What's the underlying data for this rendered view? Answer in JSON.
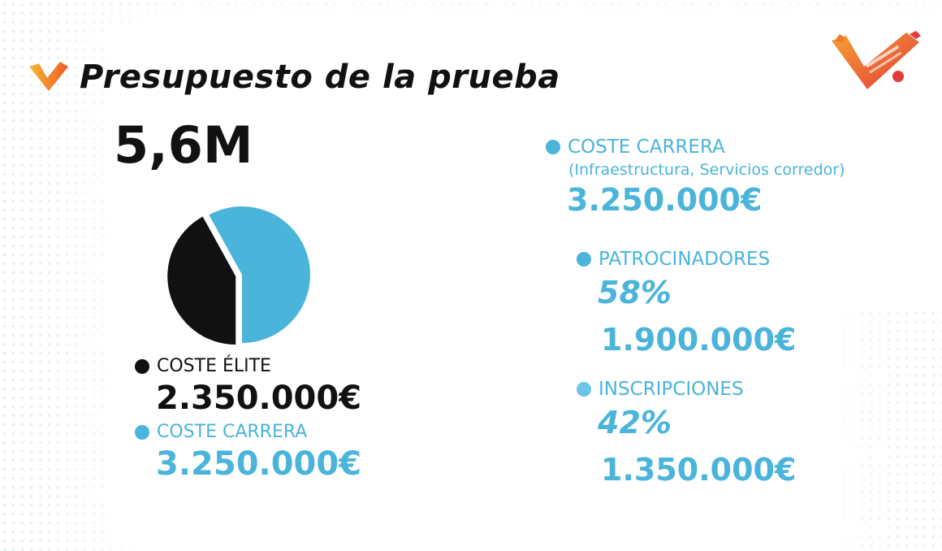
{
  "title": "Presupuesto de la prueba",
  "total": "5,6M",
  "colors": {
    "black": "#111111",
    "blue": "#4ab4db",
    "light_blue": "#6cc4e6",
    "orange": "#f07a2e",
    "red": "#e33a3a"
  },
  "left_legend": {
    "elite_label": "COSTE ÉLITE",
    "elite_amount": "2.350.000€",
    "carrera_label": "COSTE CARRERA",
    "carrera_amount": "3.250.000€"
  },
  "right": {
    "carrera_label": "COSTE CARRERA",
    "carrera_sub": "(Infraestructura, Servicios corredor)",
    "carrera_amount": "3.250.000€",
    "patrocinadores_label": "PATROCINADORES",
    "patrocinadores_pct": "58%",
    "patrocinadores_amount": "1.900.000€",
    "inscripciones_label": "INSCRIPCIONES",
    "inscripciones_pct": "42%",
    "inscripciones_amount": "1.350.000€"
  },
  "icons": {
    "title_icon": "orange-check-icon",
    "logo": "maraton-logo-icon"
  },
  "chart_data": {
    "type": "pie",
    "title": "",
    "slices": [
      {
        "name": "COSTE CARRERA",
        "value": 3250000,
        "color": "#4ab4db",
        "exploded": false
      },
      {
        "name": "COSTE ÉLITE",
        "value": 2350000,
        "color": "#111111",
        "exploded": true
      }
    ],
    "legend": "below-left"
  }
}
